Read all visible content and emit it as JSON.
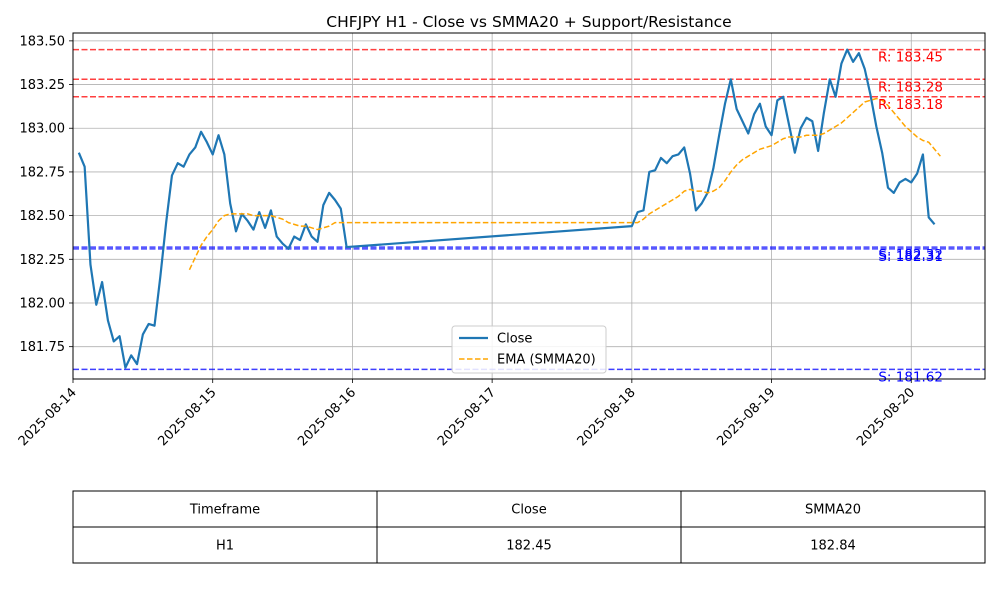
{
  "chart_data": {
    "type": "line",
    "title": "CHFJPY H1 - Close vs SMMA20 + Support/Resistance",
    "xlabel": "",
    "ylabel": "",
    "ylim": [
      181.565,
      183.545
    ],
    "x_range": [
      "2025-08-14",
      "2025-08-20 12:40"
    ],
    "x_ticks": [
      "2025-08-14",
      "2025-08-15",
      "2025-08-16",
      "2025-08-17",
      "2025-08-18",
      "2025-08-19",
      "2025-08-20"
    ],
    "y_ticks": [
      181.75,
      182.0,
      182.25,
      182.5,
      182.75,
      183.0,
      183.25,
      183.5
    ],
    "grid": true,
    "legend_position": "lower-center",
    "series": [
      {
        "name": "Close",
        "color": "#1f77b4",
        "style": "solid",
        "points": [
          [
            "2025-08-14 01:00",
            182.86
          ],
          [
            "2025-08-14 02:00",
            182.78
          ],
          [
            "2025-08-14 03:00",
            182.22
          ],
          [
            "2025-08-14 04:00",
            181.99
          ],
          [
            "2025-08-14 05:00",
            182.12
          ],
          [
            "2025-08-14 06:00",
            181.9
          ],
          [
            "2025-08-14 07:00",
            181.78
          ],
          [
            "2025-08-14 08:00",
            181.81
          ],
          [
            "2025-08-14 09:00",
            181.63
          ],
          [
            "2025-08-14 10:00",
            181.7
          ],
          [
            "2025-08-14 11:00",
            181.65
          ],
          [
            "2025-08-14 12:00",
            181.82
          ],
          [
            "2025-08-14 13:00",
            181.88
          ],
          [
            "2025-08-14 14:00",
            181.87
          ],
          [
            "2025-08-14 15:00",
            182.15
          ],
          [
            "2025-08-14 16:00",
            182.46
          ],
          [
            "2025-08-14 17:00",
            182.73
          ],
          [
            "2025-08-14 18:00",
            182.8
          ],
          [
            "2025-08-14 19:00",
            182.78
          ],
          [
            "2025-08-14 20:00",
            182.85
          ],
          [
            "2025-08-14 21:00",
            182.89
          ],
          [
            "2025-08-14 22:00",
            182.98
          ],
          [
            "2025-08-14 23:00",
            182.92
          ],
          [
            "2025-08-15 00:00",
            182.85
          ],
          [
            "2025-08-15 01:00",
            182.96
          ],
          [
            "2025-08-15 02:00",
            182.85
          ],
          [
            "2025-08-15 03:00",
            182.57
          ],
          [
            "2025-08-15 04:00",
            182.41
          ],
          [
            "2025-08-15 05:00",
            182.51
          ],
          [
            "2025-08-15 06:00",
            182.47
          ],
          [
            "2025-08-15 07:00",
            182.42
          ],
          [
            "2025-08-15 08:00",
            182.52
          ],
          [
            "2025-08-15 09:00",
            182.43
          ],
          [
            "2025-08-15 10:00",
            182.53
          ],
          [
            "2025-08-15 11:00",
            182.38
          ],
          [
            "2025-08-15 12:00",
            182.34
          ],
          [
            "2025-08-15 13:00",
            182.31
          ],
          [
            "2025-08-15 14:00",
            182.38
          ],
          [
            "2025-08-15 15:00",
            182.36
          ],
          [
            "2025-08-15 16:00",
            182.45
          ],
          [
            "2025-08-15 17:00",
            182.38
          ],
          [
            "2025-08-15 18:00",
            182.35
          ],
          [
            "2025-08-15 19:00",
            182.56
          ],
          [
            "2025-08-15 20:00",
            182.63
          ],
          [
            "2025-08-15 21:00",
            182.59
          ],
          [
            "2025-08-15 22:00",
            182.54
          ],
          [
            "2025-08-15 23:00",
            182.32
          ],
          [
            "2025-08-18 00:00",
            182.44
          ],
          [
            "2025-08-18 01:00",
            182.52
          ],
          [
            "2025-08-18 02:00",
            182.53
          ],
          [
            "2025-08-18 03:00",
            182.75
          ],
          [
            "2025-08-18 04:00",
            182.76
          ],
          [
            "2025-08-18 05:00",
            182.83
          ],
          [
            "2025-08-18 06:00",
            182.8
          ],
          [
            "2025-08-18 07:00",
            182.84
          ],
          [
            "2025-08-18 08:00",
            182.85
          ],
          [
            "2025-08-18 09:00",
            182.89
          ],
          [
            "2025-08-18 10:00",
            182.74
          ],
          [
            "2025-08-18 11:00",
            182.53
          ],
          [
            "2025-08-18 12:00",
            182.57
          ],
          [
            "2025-08-18 13:00",
            182.63
          ],
          [
            "2025-08-18 14:00",
            182.77
          ],
          [
            "2025-08-18 15:00",
            182.96
          ],
          [
            "2025-08-18 16:00",
            183.14
          ],
          [
            "2025-08-18 17:00",
            183.28
          ],
          [
            "2025-08-18 18:00",
            183.11
          ],
          [
            "2025-08-18 19:00",
            183.04
          ],
          [
            "2025-08-18 20:00",
            182.97
          ],
          [
            "2025-08-18 21:00",
            183.08
          ],
          [
            "2025-08-18 22:00",
            183.14
          ],
          [
            "2025-08-18 23:00",
            183.01
          ],
          [
            "2025-08-19 00:00",
            182.96
          ],
          [
            "2025-08-19 01:00",
            183.16
          ],
          [
            "2025-08-19 02:00",
            183.18
          ],
          [
            "2025-08-19 03:00",
            183.02
          ],
          [
            "2025-08-19 04:00",
            182.86
          ],
          [
            "2025-08-19 05:00",
            183.0
          ],
          [
            "2025-08-19 06:00",
            183.06
          ],
          [
            "2025-08-19 07:00",
            183.04
          ],
          [
            "2025-08-19 08:00",
            182.87
          ],
          [
            "2025-08-19 09:00",
            183.09
          ],
          [
            "2025-08-19 10:00",
            183.28
          ],
          [
            "2025-08-19 11:00",
            183.18
          ],
          [
            "2025-08-19 12:00",
            183.37
          ],
          [
            "2025-08-19 13:00",
            183.45
          ],
          [
            "2025-08-19 14:00",
            183.38
          ],
          [
            "2025-08-19 15:00",
            183.43
          ],
          [
            "2025-08-19 16:00",
            183.34
          ],
          [
            "2025-08-19 17:00",
            183.19
          ],
          [
            "2025-08-19 18:00",
            183.01
          ],
          [
            "2025-08-19 19:00",
            182.86
          ],
          [
            "2025-08-19 20:00",
            182.66
          ],
          [
            "2025-08-19 21:00",
            182.63
          ],
          [
            "2025-08-19 22:00",
            182.69
          ],
          [
            "2025-08-19 23:00",
            182.71
          ],
          [
            "2025-08-20 00:00",
            182.69
          ],
          [
            "2025-08-20 01:00",
            182.74
          ],
          [
            "2025-08-20 02:00",
            182.85
          ],
          [
            "2025-08-20 03:00",
            182.49
          ],
          [
            "2025-08-20 04:00",
            182.45
          ]
        ]
      },
      {
        "name": "EMA (SMMA20)",
        "color": "#ffa500",
        "style": "dashed",
        "points": [
          [
            "2025-08-14 20:00",
            182.19
          ],
          [
            "2025-08-14 21:00",
            182.26
          ],
          [
            "2025-08-14 22:00",
            182.33
          ],
          [
            "2025-08-14 23:00",
            182.38
          ],
          [
            "2025-08-15 00:00",
            182.42
          ],
          [
            "2025-08-15 01:00",
            182.47
          ],
          [
            "2025-08-15 02:00",
            182.5
          ],
          [
            "2025-08-15 03:00",
            182.51
          ],
          [
            "2025-08-15 04:00",
            182.51
          ],
          [
            "2025-08-15 05:00",
            182.51
          ],
          [
            "2025-08-15 06:00",
            182.51
          ],
          [
            "2025-08-15 07:00",
            182.5
          ],
          [
            "2025-08-15 08:00",
            182.5
          ],
          [
            "2025-08-15 09:00",
            182.5
          ],
          [
            "2025-08-15 10:00",
            182.5
          ],
          [
            "2025-08-15 11:00",
            182.49
          ],
          [
            "2025-08-15 12:00",
            182.48
          ],
          [
            "2025-08-15 13:00",
            182.46
          ],
          [
            "2025-08-15 14:00",
            182.45
          ],
          [
            "2025-08-15 15:00",
            182.44
          ],
          [
            "2025-08-15 16:00",
            182.44
          ],
          [
            "2025-08-15 17:00",
            182.43
          ],
          [
            "2025-08-15 18:00",
            182.42
          ],
          [
            "2025-08-15 19:00",
            182.43
          ],
          [
            "2025-08-15 20:00",
            182.44
          ],
          [
            "2025-08-15 21:00",
            182.46
          ],
          [
            "2025-08-15 22:00",
            182.46
          ],
          [
            "2025-08-15 23:00",
            182.46
          ],
          [
            "2025-08-18 00:00",
            182.46
          ],
          [
            "2025-08-18 01:00",
            182.46
          ],
          [
            "2025-08-18 02:00",
            182.48
          ],
          [
            "2025-08-18 03:00",
            182.51
          ],
          [
            "2025-08-18 04:00",
            182.53
          ],
          [
            "2025-08-18 05:00",
            182.55
          ],
          [
            "2025-08-18 06:00",
            182.57
          ],
          [
            "2025-08-18 07:00",
            182.59
          ],
          [
            "2025-08-18 08:00",
            182.61
          ],
          [
            "2025-08-18 09:00",
            182.64
          ],
          [
            "2025-08-18 10:00",
            182.65
          ],
          [
            "2025-08-18 11:00",
            182.64
          ],
          [
            "2025-08-18 12:00",
            182.64
          ],
          [
            "2025-08-18 13:00",
            182.63
          ],
          [
            "2025-08-18 14:00",
            182.64
          ],
          [
            "2025-08-18 15:00",
            182.66
          ],
          [
            "2025-08-18 16:00",
            182.7
          ],
          [
            "2025-08-18 17:00",
            182.75
          ],
          [
            "2025-08-18 18:00",
            182.79
          ],
          [
            "2025-08-18 19:00",
            182.82
          ],
          [
            "2025-08-18 20:00",
            182.84
          ],
          [
            "2025-08-18 21:00",
            182.86
          ],
          [
            "2025-08-18 22:00",
            182.88
          ],
          [
            "2025-08-18 23:00",
            182.89
          ],
          [
            "2025-08-19 00:00",
            182.9
          ],
          [
            "2025-08-19 01:00",
            182.92
          ],
          [
            "2025-08-19 02:00",
            182.94
          ],
          [
            "2025-08-19 03:00",
            182.95
          ],
          [
            "2025-08-19 04:00",
            182.95
          ],
          [
            "2025-08-19 05:00",
            182.95
          ],
          [
            "2025-08-19 06:00",
            182.96
          ],
          [
            "2025-08-19 07:00",
            182.96
          ],
          [
            "2025-08-19 08:00",
            182.96
          ],
          [
            "2025-08-19 09:00",
            182.97
          ],
          [
            "2025-08-19 10:00",
            182.99
          ],
          [
            "2025-08-19 11:00",
            183.01
          ],
          [
            "2025-08-19 12:00",
            183.03
          ],
          [
            "2025-08-19 13:00",
            183.06
          ],
          [
            "2025-08-19 14:00",
            183.09
          ],
          [
            "2025-08-19 15:00",
            183.12
          ],
          [
            "2025-08-19 16:00",
            183.15
          ],
          [
            "2025-08-19 17:00",
            183.16
          ],
          [
            "2025-08-19 18:00",
            183.17
          ],
          [
            "2025-08-19 19:00",
            183.16
          ],
          [
            "2025-08-19 20:00",
            183.13
          ],
          [
            "2025-08-19 21:00",
            183.09
          ],
          [
            "2025-08-19 22:00",
            183.05
          ],
          [
            "2025-08-19 23:00",
            183.01
          ],
          [
            "2025-08-20 00:00",
            182.98
          ],
          [
            "2025-08-20 01:00",
            182.95
          ],
          [
            "2025-08-20 02:00",
            182.93
          ],
          [
            "2025-08-20 03:00",
            182.92
          ],
          [
            "2025-08-20 04:00",
            182.88
          ],
          [
            "2025-08-20 05:00",
            182.84
          ]
        ]
      }
    ],
    "levels": [
      {
        "kind": "resistance",
        "value": 183.45,
        "label": "R: 183.45",
        "color": "#ff0000"
      },
      {
        "kind": "resistance",
        "value": 183.28,
        "label": "R: 183.28",
        "color": "#ff0000"
      },
      {
        "kind": "resistance",
        "value": 183.18,
        "label": "R: 183.18",
        "color": "#ff0000"
      },
      {
        "kind": "support",
        "value": 182.32,
        "label": "S: 182.32",
        "color": "#0000ff"
      },
      {
        "kind": "support",
        "value": 182.31,
        "label": "S: 182.31",
        "color": "#0000ff"
      },
      {
        "kind": "support",
        "value": 181.62,
        "label": "S: 181.62",
        "color": "#0000ff"
      }
    ],
    "table": {
      "headers": [
        "Timeframe",
        "Close",
        "SMMA20"
      ],
      "rows": [
        [
          "H1",
          "182.45",
          "182.84"
        ]
      ]
    }
  }
}
